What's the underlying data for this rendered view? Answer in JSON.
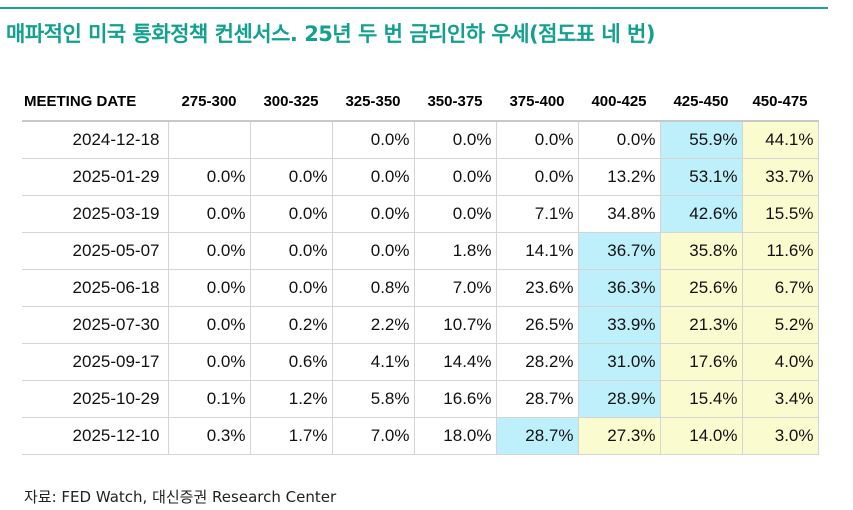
{
  "title": "매파적인 미국 통화정책 컨센서스. 25년 두 번 금리인하 우세(점도표 네 번)",
  "source": "자료: FED Watch, 대신증권 Research Center",
  "colors": {
    "title_color": "#12a08f",
    "highest_probability_cell": "#bdf0fb",
    "current_range_cell": "#fbfbd0"
  },
  "chart_data": {
    "type": "table",
    "title": "매파적인 미국 통화정책 컨센서스. 25년 두 번 금리인하 우세(점도표 네 번)",
    "columns": [
      "MEETING DATE",
      "275-300",
      "300-325",
      "325-350",
      "350-375",
      "375-400",
      "400-425",
      "425-450",
      "450-475"
    ],
    "rows": [
      {
        "date": "2024-12-18",
        "values": [
          "",
          "",
          "0.0%",
          "0.0%",
          "0.0%",
          "0.0%",
          "55.9%",
          "44.1%"
        ],
        "highlight_blue": 6
      },
      {
        "date": "2025-01-29",
        "values": [
          "0.0%",
          "0.0%",
          "0.0%",
          "0.0%",
          "0.0%",
          "13.2%",
          "53.1%",
          "33.7%"
        ],
        "highlight_blue": 6
      },
      {
        "date": "2025-03-19",
        "values": [
          "0.0%",
          "0.0%",
          "0.0%",
          "0.0%",
          "7.1%",
          "34.8%",
          "42.6%",
          "15.5%"
        ],
        "highlight_blue": 6
      },
      {
        "date": "2025-05-07",
        "values": [
          "0.0%",
          "0.0%",
          "0.0%",
          "1.8%",
          "14.1%",
          "36.7%",
          "35.8%",
          "11.6%"
        ],
        "highlight_blue": 5
      },
      {
        "date": "2025-06-18",
        "values": [
          "0.0%",
          "0.0%",
          "0.8%",
          "7.0%",
          "23.6%",
          "36.3%",
          "25.6%",
          "6.7%"
        ],
        "highlight_blue": 5
      },
      {
        "date": "2025-07-30",
        "values": [
          "0.0%",
          "0.2%",
          "2.2%",
          "10.7%",
          "26.5%",
          "33.9%",
          "21.3%",
          "5.2%"
        ],
        "highlight_blue": 5
      },
      {
        "date": "2025-09-17",
        "values": [
          "0.0%",
          "0.6%",
          "4.1%",
          "14.4%",
          "28.2%",
          "31.0%",
          "17.6%",
          "4.0%"
        ],
        "highlight_blue": 5
      },
      {
        "date": "2025-10-29",
        "values": [
          "0.1%",
          "1.2%",
          "5.8%",
          "16.6%",
          "28.7%",
          "28.9%",
          "15.4%",
          "3.4%"
        ],
        "highlight_blue": 5
      },
      {
        "date": "2025-12-10",
        "values": [
          "0.3%",
          "1.7%",
          "7.0%",
          "18.0%",
          "28.7%",
          "27.3%",
          "14.0%",
          "3.0%"
        ],
        "highlight_blue": 4
      }
    ],
    "yellow_column": 7
  }
}
